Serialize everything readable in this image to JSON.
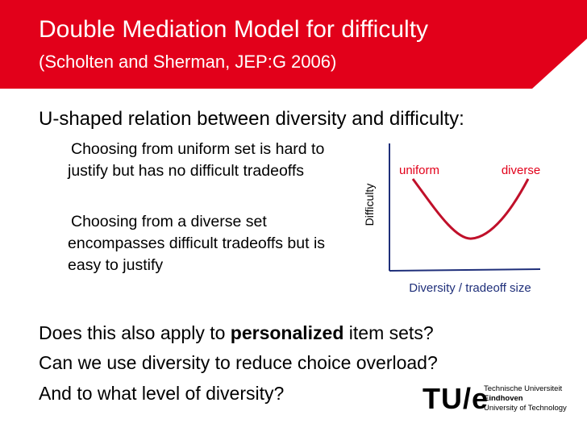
{
  "header": {
    "title": "Double Mediation Model for difficulty",
    "subtitle": "(Scholten and Sherman, JEP:G 2006)"
  },
  "body": {
    "heading": "U-shaped relation between diversity and difficulty:",
    "points": [
      "Choosing from uniform set is hard to justify but has no difficult tradeoffs",
      "Choosing from a diverse set encompasses difficult tradeoffs but is easy to justify"
    ]
  },
  "diagram": {
    "y_axis_label": "Difficulty",
    "x_axis_label": "Diversity / tradeoff size",
    "curve_labels": [
      "uniform",
      "diverse"
    ]
  },
  "questions": {
    "first": {
      "before": "Does this also apply to ",
      "emphasis": "personalized",
      "after": " item sets?"
    },
    "others": [
      "Can we use diversity to reduce choice overload?",
      "And to what level of diversity?"
    ]
  },
  "logo": {
    "mark": "TU/e",
    "lines": [
      "Technische Universiteit",
      "Eindhoven",
      "University of Technology"
    ]
  }
}
